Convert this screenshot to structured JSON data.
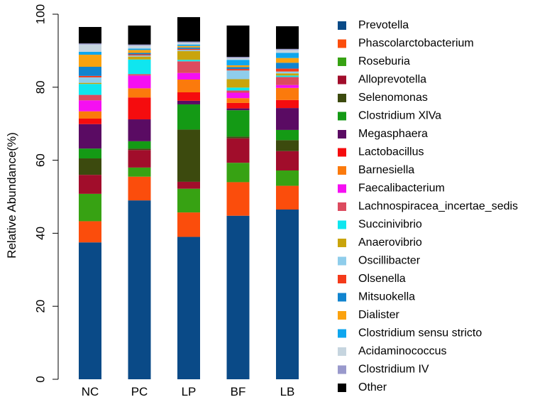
{
  "chart_data": {
    "type": "bar",
    "stacked": true,
    "title": "",
    "xlabel": "",
    "ylabel": "Relative Abundance(%)",
    "ylim": [
      0,
      100
    ],
    "yticks": [
      0,
      20,
      40,
      60,
      80,
      100
    ],
    "grid": false,
    "legend_position": "right",
    "categories": [
      "NC",
      "PC",
      "LP",
      "BF",
      "LB"
    ],
    "series": [
      {
        "name": "Prevotella",
        "color": "#0a4a87",
        "values": [
          37.5,
          49.0,
          39.0,
          44.8,
          46.5
        ]
      },
      {
        "name": "Phascolarctobacterium",
        "color": "#fb4d0c",
        "values": [
          5.8,
          6.5,
          6.7,
          9.2,
          6.5
        ]
      },
      {
        "name": "Roseburia",
        "color": "#37a213",
        "values": [
          7.5,
          2.5,
          6.5,
          5.3,
          4.2
        ]
      },
      {
        "name": "Alloprevotella",
        "color": "#a10d2b",
        "values": [
          5.2,
          4.8,
          1.9,
          6.7,
          5.3
        ]
      },
      {
        "name": "Selenomonas",
        "color": "#3c4a0e",
        "values": [
          4.5,
          0.4,
          14.3,
          0.5,
          3.0
        ]
      },
      {
        "name": "Clostridium XlVa",
        "color": "#149a15",
        "values": [
          2.7,
          2.0,
          6.9,
          7.2,
          2.8
        ]
      },
      {
        "name": "Megasphaera",
        "color": "#5a0b63",
        "values": [
          6.7,
          6.0,
          1.0,
          0.5,
          6.0
        ]
      },
      {
        "name": "Lactobacillus",
        "color": "#f50c0e",
        "values": [
          1.5,
          6.0,
          2.3,
          1.5,
          2.2
        ]
      },
      {
        "name": "Barnesiella",
        "color": "#fb7a0c",
        "values": [
          2.0,
          2.5,
          3.5,
          1.3,
          3.3
        ]
      },
      {
        "name": "Faecalibacterium",
        "color": "#f50ff2",
        "values": [
          3.0,
          3.5,
          1.8,
          1.5,
          0.8
        ]
      },
      {
        "name": "Lachnospiracea_incertae_sedis",
        "color": "#dc4b5f",
        "values": [
          1.5,
          0.4,
          3.2,
          0.6,
          2.2
        ]
      },
      {
        "name": "Succinivibrio",
        "color": "#0fe6ef",
        "values": [
          3.0,
          4.0,
          0.4,
          0.8,
          0.4
        ]
      },
      {
        "name": "Anaerovibrio",
        "color": "#c9a40c",
        "values": [
          0.3,
          0.8,
          2.4,
          2.3,
          0.6
        ]
      },
      {
        "name": "Oscillibacter",
        "color": "#8fcdeb",
        "values": [
          1.5,
          0.3,
          0.3,
          2.4,
          0.5
        ]
      },
      {
        "name": "Olsenella",
        "color": "#f43a1a",
        "values": [
          0.4,
          0.3,
          0.3,
          0.4,
          0.8
        ]
      },
      {
        "name": "Mitsuokella",
        "color": "#1184cf",
        "values": [
          2.5,
          0.4,
          0.4,
          0.5,
          1.6
        ]
      },
      {
        "name": "Dialister",
        "color": "#fba20f",
        "values": [
          3.3,
          0.8,
          0.4,
          0.5,
          1.3
        ]
      },
      {
        "name": "Clostridium sensu stricto",
        "color": "#0ea6ee",
        "values": [
          0.8,
          0.4,
          0.4,
          1.5,
          1.4
        ]
      },
      {
        "name": "Acidaminococcus",
        "color": "#c6d5df",
        "values": [
          2.0,
          0.8,
          0.5,
          0.5,
          0.8
        ]
      },
      {
        "name": "Clostridium IV",
        "color": "#9999cc",
        "values": [
          0.3,
          0.3,
          0.3,
          0.3,
          0.3
        ]
      },
      {
        "name": "Other",
        "color": "#000000",
        "values": [
          4.5,
          5.2,
          6.7,
          8.6,
          6.2
        ]
      }
    ]
  }
}
